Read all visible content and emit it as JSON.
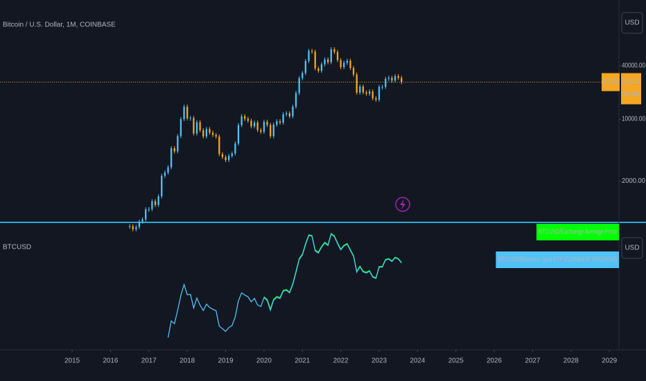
{
  "chart_data": [
    {
      "type": "candlestick",
      "title": "Bitcoin / U.S. Dollar, 1M, COINBASE",
      "currency": "USD",
      "log_scale": true,
      "grid": false,
      "up_color": "#4fc3f7",
      "down_color": "#f5a623",
      "xlim": [
        2013.12,
        2029.25
      ],
      "ylim": [
        700,
        220000
      ],
      "yticks": [
        {
          "value": 40000,
          "label": "40000.00"
        },
        {
          "value": 10000,
          "label": "10000.00"
        },
        {
          "value": 2000,
          "label": "2000.00"
        }
      ],
      "symbol": "BTCUSD",
      "last_price": 26140.25,
      "countdown": "3d 9h",
      "price_line_color": "#f5a623",
      "x": [
        2016.5,
        2016.583,
        2016.667,
        2016.75,
        2016.833,
        2016.917,
        2017.0,
        2017.083,
        2017.167,
        2017.25,
        2017.333,
        2017.417,
        2017.5,
        2017.583,
        2017.667,
        2017.75,
        2017.833,
        2017.917,
        2018.0,
        2018.083,
        2018.167,
        2018.25,
        2018.333,
        2018.417,
        2018.5,
        2018.583,
        2018.667,
        2018.75,
        2018.833,
        2018.917,
        2019.0,
        2019.083,
        2019.167,
        2019.25,
        2019.333,
        2019.417,
        2019.5,
        2019.583,
        2019.667,
        2019.75,
        2019.833,
        2019.917,
        2020.0,
        2020.083,
        2020.167,
        2020.25,
        2020.333,
        2020.417,
        2020.5,
        2020.583,
        2020.667,
        2020.75,
        2020.833,
        2020.917,
        2021.0,
        2021.083,
        2021.167,
        2021.25,
        2021.333,
        2021.417,
        2021.5,
        2021.583,
        2021.667,
        2021.75,
        2021.833,
        2021.917,
        2022.0,
        2022.083,
        2022.167,
        2022.25,
        2022.333,
        2022.417,
        2022.5,
        2022.583,
        2022.667,
        2022.75,
        2022.833,
        2022.917,
        2023.0,
        2023.083,
        2023.167,
        2023.25,
        2023.333,
        2023.417,
        2023.5,
        2023.583
      ],
      "values": [
        624,
        575,
        609,
        701,
        742,
        963,
        970,
        1190,
        1080,
        1350,
        2300,
        2500,
        2875,
        4700,
        4340,
        6450,
        10000,
        13800,
        10200,
        10300,
        6900,
        9250,
        7500,
        6390,
        7730,
        7030,
        6630,
        6370,
        4040,
        3740,
        3460,
        3850,
        4100,
        5320,
        8570,
        10800,
        10100,
        9600,
        8300,
        9150,
        7550,
        7200,
        9350,
        8600,
        6440,
        8660,
        9460,
        9140,
        11350,
        11650,
        10780,
        13800,
        19700,
        28990,
        33100,
        45200,
        58800,
        57700,
        37300,
        35040,
        41500,
        47100,
        43800,
        61300,
        57000,
        46300,
        38500,
        43200,
        45500,
        37700,
        31800,
        19900,
        23300,
        20050,
        19400,
        20500,
        17160,
        16550,
        23120,
        23140,
        28480,
        29250,
        27210,
        30470,
        29230,
        26140
      ]
    },
    {
      "type": "line",
      "title": "BTCUSD",
      "currency": "USD",
      "log_scale": true,
      "xlim": [
        2013.12,
        2029.25
      ],
      "ylim": [
        2000,
        80000
      ],
      "xticks": [
        2015,
        2016,
        2017,
        2018,
        2019,
        2020,
        2021,
        2022,
        2023,
        2024,
        2025,
        2026,
        2027,
        2028,
        2029
      ],
      "x": [
        2016.5,
        2016.583,
        2016.667,
        2016.75,
        2016.833,
        2016.917,
        2017.0,
        2017.083,
        2017.167,
        2017.25,
        2017.333,
        2017.417,
        2017.5,
        2017.583,
        2017.667,
        2017.75,
        2017.833,
        2017.917,
        2018.0,
        2018.083,
        2018.167,
        2018.25,
        2018.333,
        2018.417,
        2018.5,
        2018.583,
        2018.667,
        2018.75,
        2018.833,
        2018.917,
        2019.0,
        2019.083,
        2019.167,
        2019.25,
        2019.333,
        2019.417,
        2019.5,
        2019.583,
        2019.667,
        2019.75,
        2019.833,
        2019.917,
        2020.0,
        2020.083,
        2020.167,
        2020.25,
        2020.333,
        2020.417,
        2020.5,
        2020.583,
        2020.667,
        2020.75,
        2020.833,
        2020.917,
        2021.0,
        2021.083,
        2021.167,
        2021.25,
        2021.333,
        2021.417,
        2021.5,
        2021.583,
        2021.667,
        2021.75,
        2021.833,
        2021.917,
        2022.0,
        2022.083,
        2022.167,
        2022.25,
        2022.333,
        2022.417,
        2022.5,
        2022.583,
        2022.667,
        2022.75,
        2022.833,
        2022.917,
        2023.0,
        2023.083,
        2023.167,
        2023.25,
        2023.333,
        2023.417,
        2023.5,
        2023.583
      ],
      "series": [
        {
          "name": "BTCUSD/Exchange Average Price",
          "color": "#00ff00",
          "values": [
            null,
            null,
            null,
            null,
            null,
            null,
            null,
            null,
            null,
            null,
            null,
            null,
            null,
            null,
            null,
            null,
            null,
            null,
            null,
            null,
            null,
            null,
            null,
            null,
            null,
            null,
            null,
            null,
            null,
            null,
            null,
            null,
            null,
            null,
            null,
            null,
            null,
            null,
            null,
            null,
            null,
            null,
            9600,
            8900,
            6700,
            8900,
            9700,
            9400,
            11600,
            11900,
            11000,
            14200,
            20300,
            29800,
            34000,
            46500,
            60000,
            58900,
            38200,
            36000,
            42500,
            48200,
            44800,
            62500,
            58200,
            47300,
            39400,
            44200,
            46500,
            38600,
            32500,
            20400,
            23800,
            20500,
            19800,
            20900,
            17500,
            16900,
            23600,
            23600,
            29000,
            29800,
            27700,
            31000,
            29700,
            26600
          ]
        },
        {
          "name": "BTCUSD/Blackrock Spot-ETF (COINBASE PREMIUM)",
          "color": "#4fc3f7",
          "values": [
            null,
            null,
            null,
            null,
            null,
            null,
            null,
            null,
            null,
            null,
            null,
            null,
            2875,
            4700,
            4340,
            6450,
            10000,
            13800,
            10200,
            10300,
            6900,
            9250,
            7500,
            6390,
            7730,
            7030,
            6630,
            6370,
            4040,
            3740,
            3460,
            3850,
            4100,
            5320,
            8570,
            10800,
            10100,
            9600,
            8300,
            9150,
            7550,
            7200,
            9350,
            8600,
            6440,
            8660,
            9460,
            9140,
            11350,
            11650,
            10780,
            13800,
            19700,
            28990,
            33100,
            45200,
            58800,
            57700,
            37300,
            35040,
            41500,
            47100,
            43800,
            61300,
            57000,
            46300,
            38500,
            43200,
            45500,
            37700,
            31800,
            19900,
            23300,
            20050,
            19400,
            20500,
            17160,
            16550,
            23120,
            23140,
            28480,
            29250,
            27210,
            30470,
            29230,
            26140
          ]
        }
      ]
    }
  ]
}
